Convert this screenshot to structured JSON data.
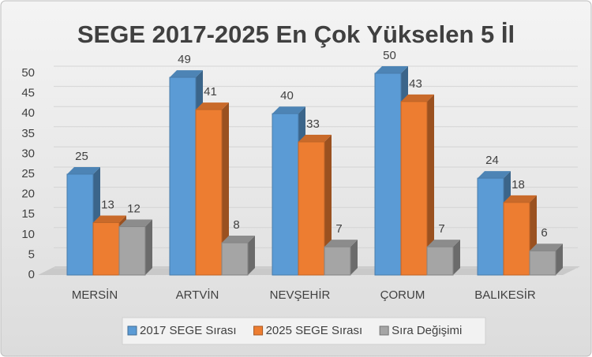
{
  "chart_data": {
    "type": "bar3d",
    "title": "SEGE 2017-2025 En Çok Yükselen 5 İl",
    "categories": [
      "MERSİN",
      "ARTVİN",
      "NEVŞEHİR",
      "ÇORUM",
      "BALIKESİR"
    ],
    "series": [
      {
        "name": "2017 SEGE Sırası",
        "color": "#5b9bd5",
        "values": [
          25,
          49,
          40,
          50,
          24
        ]
      },
      {
        "name": "2025 SEGE Sırası",
        "color": "#ed7d31",
        "values": [
          13,
          41,
          33,
          43,
          18
        ]
      },
      {
        "name": "Sıra Değişimi",
        "color": "#a5a5a5",
        "values": [
          12,
          8,
          7,
          7,
          6
        ]
      }
    ],
    "ylim": [
      0,
      50
    ],
    "yticks": [
      0,
      5,
      10,
      15,
      20,
      25,
      30,
      35,
      40,
      45,
      50
    ],
    "grid": true,
    "legend": "bottom"
  }
}
